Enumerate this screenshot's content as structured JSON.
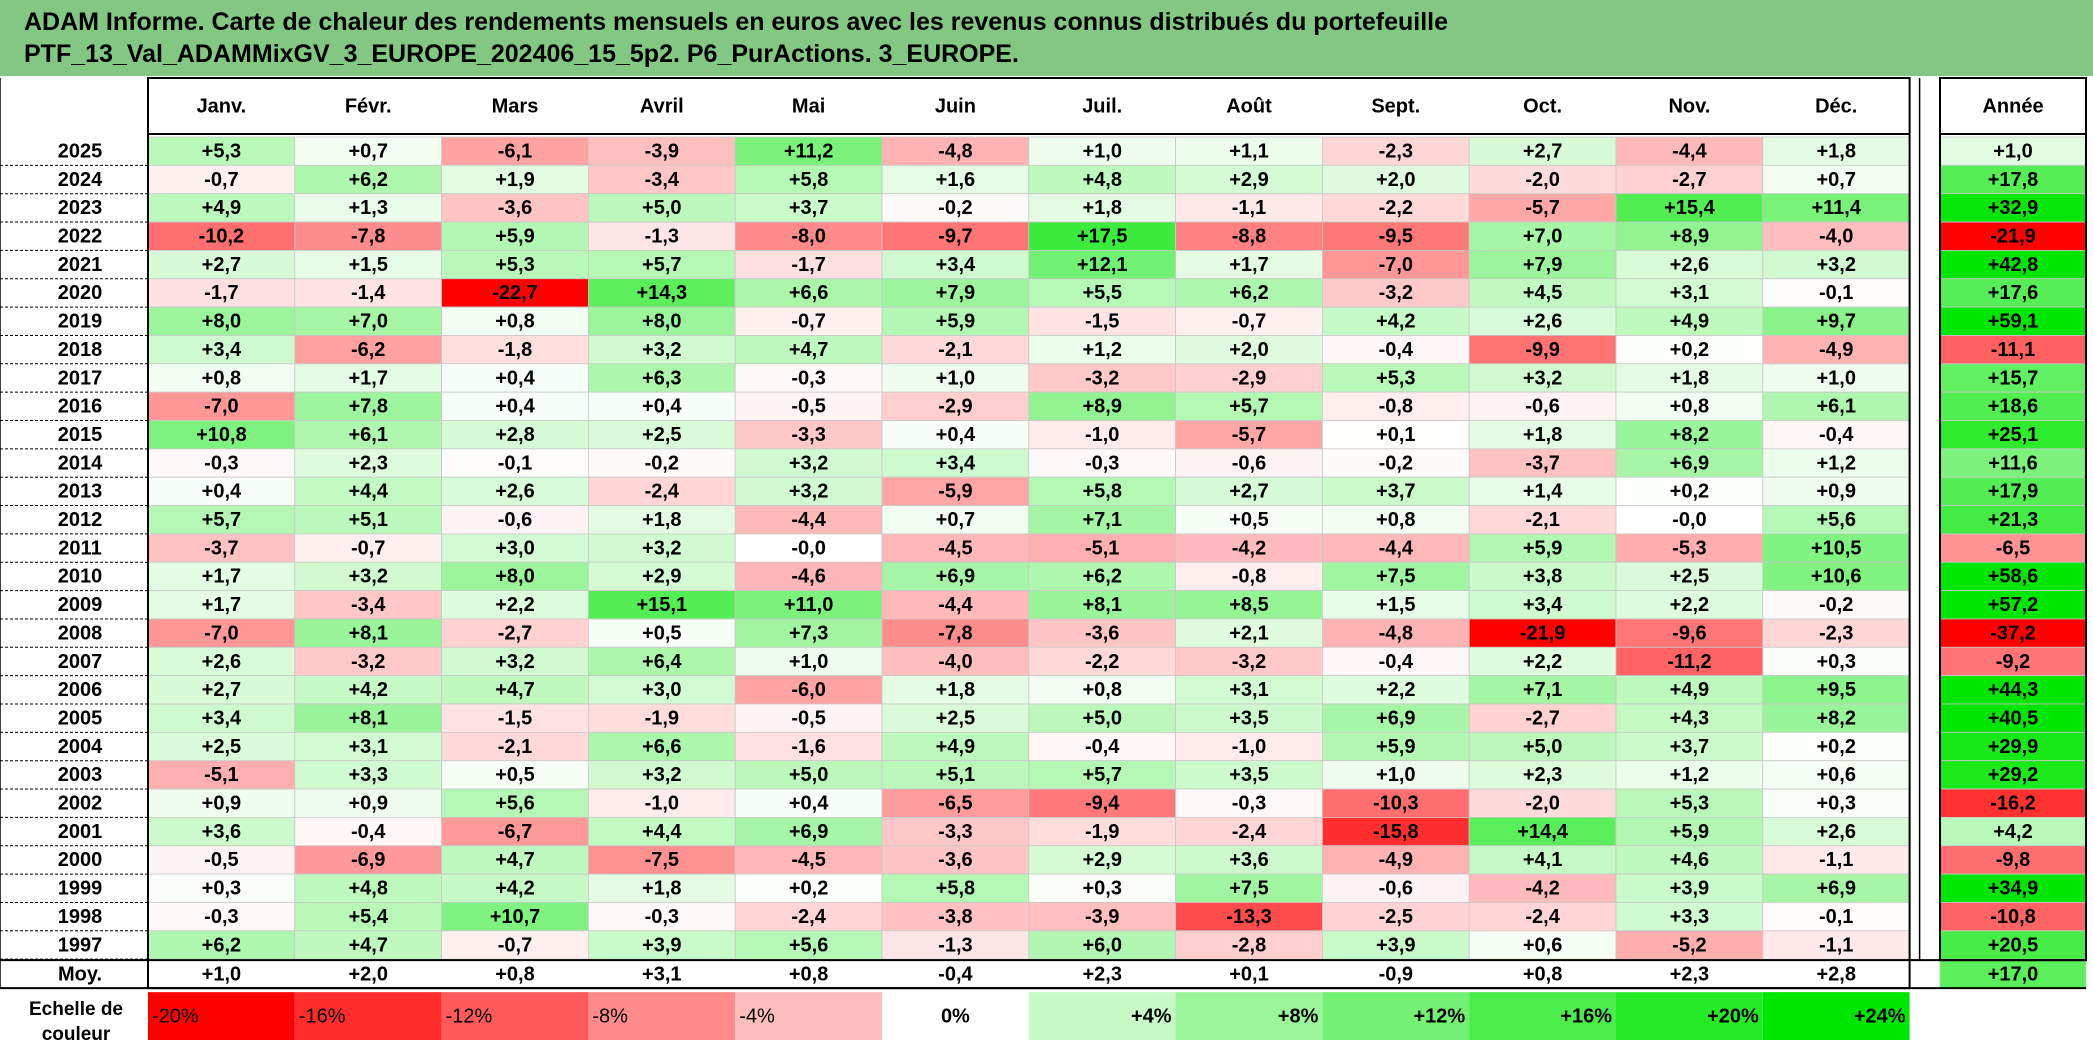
{
  "header": {
    "title_line1": "ADAM Informe. Carte de chaleur des rendements mensuels en euros avec les revenus connus distribués du portefeuille",
    "title_line2": "PTF_13_Val_ADAMMixGV_3_EUROPE_202406_15_5p2. P6_PurActions. 3_EUROPE."
  },
  "colors": {
    "header_bg": "#82c882",
    "negative_max": "#ff0000",
    "positive_max": "#00e600",
    "neutral": "#ffffff"
  },
  "chart_data": {
    "type": "heatmap",
    "months": [
      "Janv.",
      "Févr.",
      "Mars",
      "Avril",
      "Mai",
      "Juin",
      "Juil.",
      "Août",
      "Sept.",
      "Oct.",
      "Nov.",
      "Déc."
    ],
    "year_label": "Année",
    "average_label": "Moy.",
    "rows": [
      {
        "year": "2025",
        "values": [
          "+5,3",
          "+0,7",
          "-6,1",
          "-3,9",
          "+11,2",
          "-4,8",
          "+1,0",
          "+1,1",
          "-2,3",
          "+2,7",
          "-4,4",
          "+1,8"
        ],
        "annual": "+1,0"
      },
      {
        "year": "2024",
        "values": [
          "-0,7",
          "+6,2",
          "+1,9",
          "-3,4",
          "+5,8",
          "+1,6",
          "+4,8",
          "+2,9",
          "+2,0",
          "-2,0",
          "-2,7",
          "+0,7"
        ],
        "annual": "+17,8"
      },
      {
        "year": "2023",
        "values": [
          "+4,9",
          "+1,3",
          "-3,6",
          "+5,0",
          "+3,7",
          "-0,2",
          "+1,8",
          "-1,1",
          "-2,2",
          "-5,7",
          "+15,4",
          "+11,4"
        ],
        "annual": "+32,9"
      },
      {
        "year": "2022",
        "values": [
          "-10,2",
          "-7,8",
          "+5,9",
          "-1,3",
          "-8,0",
          "-9,7",
          "+17,5",
          "-8,8",
          "-9,5",
          "+7,0",
          "+8,9",
          "-4,0"
        ],
        "annual": "-21,9"
      },
      {
        "year": "2021",
        "values": [
          "+2,7",
          "+1,5",
          "+5,3",
          "+5,7",
          "-1,7",
          "+3,4",
          "+12,1",
          "+1,7",
          "-7,0",
          "+7,9",
          "+2,6",
          "+3,2"
        ],
        "annual": "+42,8"
      },
      {
        "year": "2020",
        "values": [
          "-1,7",
          "-1,4",
          "-22,7",
          "+14,3",
          "+6,6",
          "+7,9",
          "+5,5",
          "+6,2",
          "-3,2",
          "+4,5",
          "+3,1",
          "-0,1"
        ],
        "annual": "+17,6"
      },
      {
        "year": "2019",
        "values": [
          "+8,0",
          "+7,0",
          "+0,8",
          "+8,0",
          "-0,7",
          "+5,9",
          "-1,5",
          "-0,7",
          "+4,2",
          "+2,6",
          "+4,9",
          "+9,7"
        ],
        "annual": "+59,1"
      },
      {
        "year": "2018",
        "values": [
          "+3,4",
          "-6,2",
          "-1,8",
          "+3,2",
          "+4,7",
          "-2,1",
          "+1,2",
          "+2,0",
          "-0,4",
          "-9,9",
          "+0,2",
          "-4,9"
        ],
        "annual": "-11,1"
      },
      {
        "year": "2017",
        "values": [
          "+0,8",
          "+1,7",
          "+0,4",
          "+6,3",
          "-0,3",
          "+1,0",
          "-3,2",
          "-2,9",
          "+5,3",
          "+3,2",
          "+1,8",
          "+1,0"
        ],
        "annual": "+15,7"
      },
      {
        "year": "2016",
        "values": [
          "-7,0",
          "+7,8",
          "+0,4",
          "+0,4",
          "-0,5",
          "-2,9",
          "+8,9",
          "+5,7",
          "-0,8",
          "-0,6",
          "+0,8",
          "+6,1"
        ],
        "annual": "+18,6"
      },
      {
        "year": "2015",
        "values": [
          "+10,8",
          "+6,1",
          "+2,8",
          "+2,5",
          "-3,3",
          "+0,4",
          "-1,0",
          "-5,7",
          "+0,1",
          "+1,8",
          "+8,2",
          "-0,4"
        ],
        "annual": "+25,1"
      },
      {
        "year": "2014",
        "values": [
          "-0,3",
          "+2,3",
          "-0,1",
          "-0,2",
          "+3,2",
          "+3,4",
          "-0,3",
          "-0,6",
          "-0,2",
          "-3,7",
          "+6,9",
          "+1,2"
        ],
        "annual": "+11,6"
      },
      {
        "year": "2013",
        "values": [
          "+0,4",
          "+4,4",
          "+2,6",
          "-2,4",
          "+3,2",
          "-5,9",
          "+5,8",
          "+2,7",
          "+3,7",
          "+1,4",
          "+0,2",
          "+0,9"
        ],
        "annual": "+17,9"
      },
      {
        "year": "2012",
        "values": [
          "+5,7",
          "+5,1",
          "-0,6",
          "+1,8",
          "-4,4",
          "+0,7",
          "+7,1",
          "+0,5",
          "+0,8",
          "-2,1",
          "-0,0",
          "+5,6"
        ],
        "annual": "+21,3"
      },
      {
        "year": "2011",
        "values": [
          "-3,7",
          "-0,7",
          "+3,0",
          "+3,2",
          "-0,0",
          "-4,5",
          "-5,1",
          "-4,2",
          "-4,4",
          "+5,9",
          "-5,3",
          "+10,5"
        ],
        "annual": "-6,5"
      },
      {
        "year": "2010",
        "values": [
          "+1,7",
          "+3,2",
          "+8,0",
          "+2,9",
          "-4,6",
          "+6,9",
          "+6,2",
          "-0,8",
          "+7,5",
          "+3,8",
          "+2,5",
          "+10,6"
        ],
        "annual": "+58,6"
      },
      {
        "year": "2009",
        "values": [
          "+1,7",
          "-3,4",
          "+2,2",
          "+15,1",
          "+11,0",
          "-4,4",
          "+8,1",
          "+8,5",
          "+1,5",
          "+3,4",
          "+2,2",
          "-0,2"
        ],
        "annual": "+57,2"
      },
      {
        "year": "2008",
        "values": [
          "-7,0",
          "+8,1",
          "-2,7",
          "+0,5",
          "+7,3",
          "-7,8",
          "-3,6",
          "+2,1",
          "-4,8",
          "-21,9",
          "-9,6",
          "-2,3"
        ],
        "annual": "-37,2"
      },
      {
        "year": "2007",
        "values": [
          "+2,6",
          "-3,2",
          "+3,2",
          "+6,4",
          "+1,0",
          "-4,0",
          "-2,2",
          "-3,2",
          "-0,4",
          "+2,2",
          "-11,2",
          "+0,3"
        ],
        "annual": "-9,2"
      },
      {
        "year": "2006",
        "values": [
          "+2,7",
          "+4,2",
          "+4,7",
          "+3,0",
          "-6,0",
          "+1,8",
          "+0,8",
          "+3,1",
          "+2,2",
          "+7,1",
          "+4,9",
          "+9,5"
        ],
        "annual": "+44,3"
      },
      {
        "year": "2005",
        "values": [
          "+3,4",
          "+8,1",
          "-1,5",
          "-1,9",
          "-0,5",
          "+2,5",
          "+5,0",
          "+3,5",
          "+6,9",
          "-2,7",
          "+4,3",
          "+8,2"
        ],
        "annual": "+40,5"
      },
      {
        "year": "2004",
        "values": [
          "+2,5",
          "+3,1",
          "-2,1",
          "+6,6",
          "-1,6",
          "+4,9",
          "-0,4",
          "-1,0",
          "+5,9",
          "+5,0",
          "+3,7",
          "+0,2"
        ],
        "annual": "+29,9"
      },
      {
        "year": "2003",
        "values": [
          "-5,1",
          "+3,3",
          "+0,5",
          "+3,2",
          "+5,0",
          "+5,1",
          "+5,7",
          "+3,5",
          "+1,0",
          "+2,3",
          "+1,2",
          "+0,6"
        ],
        "annual": "+29,2"
      },
      {
        "year": "2002",
        "values": [
          "+0,9",
          "+0,9",
          "+5,6",
          "-1,0",
          "+0,4",
          "-6,5",
          "-9,4",
          "-0,3",
          "-10,3",
          "-2,0",
          "+5,3",
          "+0,3"
        ],
        "annual": "-16,2"
      },
      {
        "year": "2001",
        "values": [
          "+3,6",
          "-0,4",
          "-6,7",
          "+4,4",
          "+6,9",
          "-3,3",
          "-1,9",
          "-2,4",
          "-15,8",
          "+14,4",
          "+5,9",
          "+2,6"
        ],
        "annual": "+4,2"
      },
      {
        "year": "2000",
        "values": [
          "-0,5",
          "-6,9",
          "+4,7",
          "-7,5",
          "-4,5",
          "-3,6",
          "+2,9",
          "+3,6",
          "-4,9",
          "+4,1",
          "+4,6",
          "-1,1"
        ],
        "annual": "-9,8"
      },
      {
        "year": "1999",
        "values": [
          "+0,3",
          "+4,8",
          "+4,2",
          "+1,8",
          "+0,2",
          "+5,8",
          "+0,3",
          "+7,5",
          "-0,6",
          "-4,2",
          "+3,9",
          "+6,9"
        ],
        "annual": "+34,9"
      },
      {
        "year": "1998",
        "values": [
          "-0,3",
          "+5,4",
          "+10,7",
          "-0,3",
          "-2,4",
          "-3,8",
          "-3,9",
          "-13,3",
          "-2,5",
          "-2,4",
          "+3,3",
          "-0,1"
        ],
        "annual": "-10,8"
      },
      {
        "year": "1997",
        "values": [
          "+6,2",
          "+4,7",
          "-0,7",
          "+3,9",
          "+5,6",
          "-1,3",
          "+6,0",
          "-2,8",
          "+3,9",
          "+0,6",
          "-5,2",
          "-1,1"
        ],
        "annual": "+20,5"
      }
    ],
    "average": {
      "values": [
        "+1,0",
        "+2,0",
        "+0,8",
        "+3,1",
        "+0,8",
        "-0,4",
        "+2,3",
        "+0,1",
        "-0,9",
        "+0,8",
        "+2,3",
        "+2,8"
      ],
      "annual": "+17,0"
    },
    "scale": {
      "label_line1": "Echelle de",
      "label_line2": "couleur",
      "labels": [
        "-20%",
        "-16%",
        "-12%",
        "-8%",
        "-4%",
        "0%",
        "+4%",
        "+8%",
        "+12%",
        "+16%",
        "+20%",
        "+24%"
      ],
      "values": [
        -20,
        -16,
        -12,
        -8,
        -4,
        0,
        4,
        8,
        12,
        16,
        20,
        24
      ]
    },
    "color_range": {
      "min": -20,
      "max": 24
    }
  }
}
